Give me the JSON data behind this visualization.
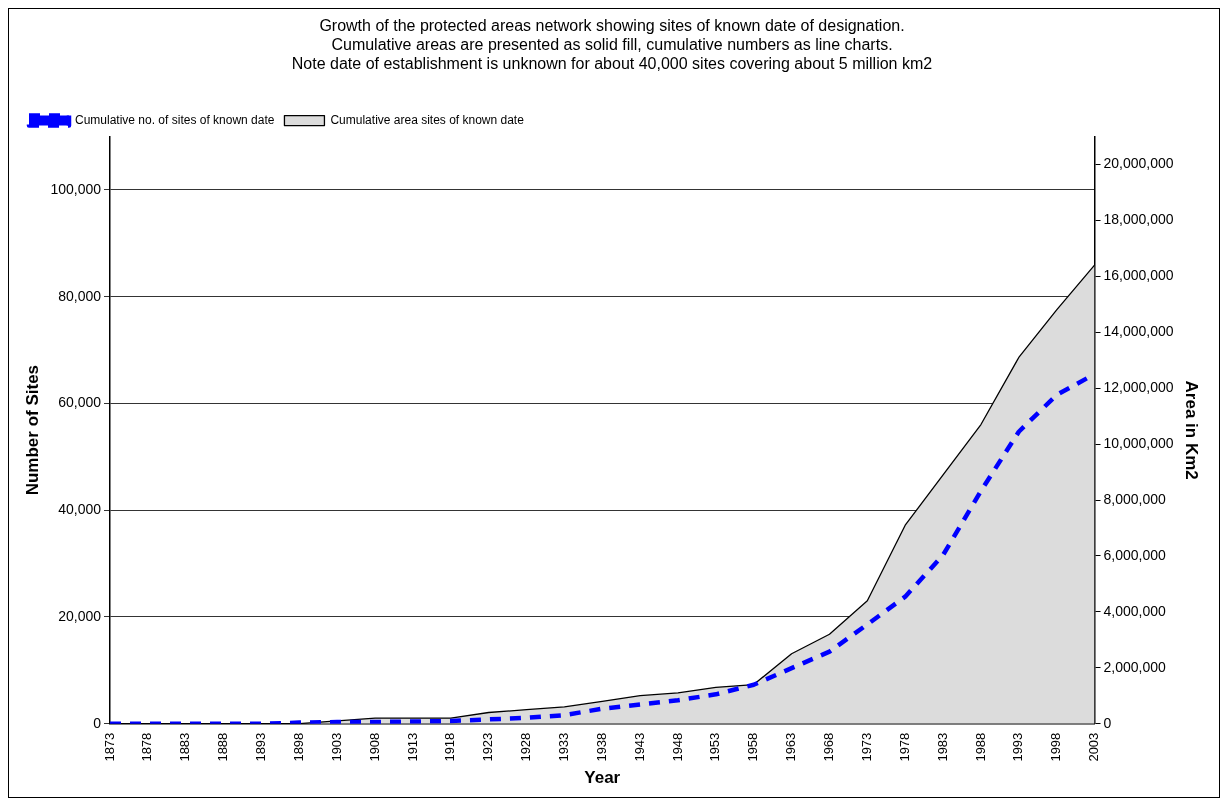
{
  "chart_data": {
    "type": "line",
    "title": "Growth of the protected areas network showing sites of known date of designation.\nCumulative areas are presented as solid fill, cumulative numbers as line charts.\nNote date of establishment is unknown for about 40,000 sites covering about 5 million km2",
    "xlabel": "Year",
    "ylabel": "Number of Sites",
    "y2label": "Area in Km2",
    "categories": [
      "1873",
      "1878",
      "1883",
      "1888",
      "1893",
      "1898",
      "1903",
      "1908",
      "1913",
      "1918",
      "1923",
      "1928",
      "1933",
      "1938",
      "1943",
      "1948",
      "1953",
      "1958",
      "1963",
      "1968",
      "1973",
      "1978",
      "1983",
      "1988",
      "1993",
      "1998",
      "2003"
    ],
    "series": [
      {
        "name": "Cumulative area sites of known date",
        "type": "area",
        "axis": "y2",
        "color": "#dcdcdc",
        "values": [
          0,
          0,
          0,
          0,
          0,
          0,
          100000,
          200000,
          200000,
          200000,
          400000,
          500000,
          600000,
          800000,
          1000000,
          1100000,
          1300000,
          1400000,
          2500000,
          3200000,
          4400000,
          7100000,
          8900000,
          10700000,
          13100000,
          14800000,
          16400000
        ]
      },
      {
        "name": "Cumulative no. of sites of known date",
        "type": "line",
        "axis": "y",
        "color": "#0000ff",
        "line_style": "dashed",
        "values": [
          0,
          0,
          0,
          0,
          0,
          200,
          300,
          300,
          400,
          500,
          800,
          1100,
          1600,
          2800,
          3600,
          4400,
          5500,
          7300,
          10400,
          13500,
          18600,
          23800,
          31600,
          43600,
          54700,
          61600,
          65500
        ]
      }
    ],
    "ylim": [
      0,
      110000
    ],
    "yticks": [
      0,
      {
        "value": 20000,
        "label": "20,000"
      },
      {
        "value": 40000,
        "label": "40,000"
      },
      {
        "value": 60000,
        "label": "60,000"
      },
      {
        "value": 80000,
        "label": "80,000"
      },
      {
        "value": 100000,
        "label": "100,000"
      }
    ],
    "y2lim": [
      0,
      21000000
    ],
    "y2ticks": [
      0,
      {
        "value": 2000000,
        "label": "2,000,000"
      },
      {
        "value": 4000000,
        "label": "4,000,000"
      },
      {
        "value": 6000000,
        "label": "6,000,000"
      },
      {
        "value": 8000000,
        "label": "8,000,000"
      },
      {
        "value": 10000000,
        "label": "10,000,000"
      },
      {
        "value": 12000000,
        "label": "12,000,000"
      },
      {
        "value": 14000000,
        "label": "14,000,000"
      },
      {
        "value": 16000000,
        "label": "16,000,000"
      },
      {
        "value": 18000000,
        "label": "18,000,000"
      },
      {
        "value": 20000000,
        "label": "20,000,000"
      }
    ],
    "grid": "y",
    "legend": "top left",
    "marker": "none"
  }
}
